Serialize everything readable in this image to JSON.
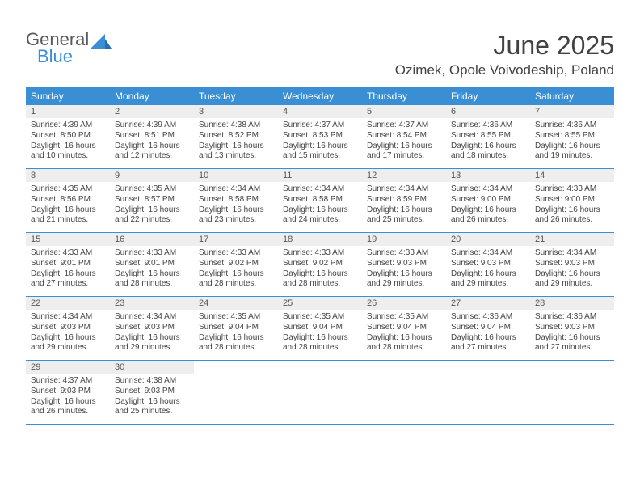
{
  "logo": {
    "text1": "General",
    "text2": "Blue"
  },
  "title": "June 2025",
  "location": "Ozimek, Opole Voivodeship, Poland",
  "colors": {
    "header_bg": "#3a8fd4",
    "daynum_bg": "#eeeeee",
    "text": "#333333",
    "border": "#3a8fd4"
  },
  "font": {
    "title_size": 32,
    "location_size": 17,
    "header_size": 12,
    "body_size": 10
  },
  "day_names": [
    "Sunday",
    "Monday",
    "Tuesday",
    "Wednesday",
    "Thursday",
    "Friday",
    "Saturday"
  ],
  "weeks": [
    [
      {
        "num": "1",
        "sunrise": "4:39 AM",
        "sunset": "8:50 PM",
        "dl1": "Daylight: 16 hours",
        "dl2": "and 10 minutes."
      },
      {
        "num": "2",
        "sunrise": "4:39 AM",
        "sunset": "8:51 PM",
        "dl1": "Daylight: 16 hours",
        "dl2": "and 12 minutes."
      },
      {
        "num": "3",
        "sunrise": "4:38 AM",
        "sunset": "8:52 PM",
        "dl1": "Daylight: 16 hours",
        "dl2": "and 13 minutes."
      },
      {
        "num": "4",
        "sunrise": "4:37 AM",
        "sunset": "8:53 PM",
        "dl1": "Daylight: 16 hours",
        "dl2": "and 15 minutes."
      },
      {
        "num": "5",
        "sunrise": "4:37 AM",
        "sunset": "8:54 PM",
        "dl1": "Daylight: 16 hours",
        "dl2": "and 17 minutes."
      },
      {
        "num": "6",
        "sunrise": "4:36 AM",
        "sunset": "8:55 PM",
        "dl1": "Daylight: 16 hours",
        "dl2": "and 18 minutes."
      },
      {
        "num": "7",
        "sunrise": "4:36 AM",
        "sunset": "8:55 PM",
        "dl1": "Daylight: 16 hours",
        "dl2": "and 19 minutes."
      }
    ],
    [
      {
        "num": "8",
        "sunrise": "4:35 AM",
        "sunset": "8:56 PM",
        "dl1": "Daylight: 16 hours",
        "dl2": "and 21 minutes."
      },
      {
        "num": "9",
        "sunrise": "4:35 AM",
        "sunset": "8:57 PM",
        "dl1": "Daylight: 16 hours",
        "dl2": "and 22 minutes."
      },
      {
        "num": "10",
        "sunrise": "4:34 AM",
        "sunset": "8:58 PM",
        "dl1": "Daylight: 16 hours",
        "dl2": "and 23 minutes."
      },
      {
        "num": "11",
        "sunrise": "4:34 AM",
        "sunset": "8:58 PM",
        "dl1": "Daylight: 16 hours",
        "dl2": "and 24 minutes."
      },
      {
        "num": "12",
        "sunrise": "4:34 AM",
        "sunset": "8:59 PM",
        "dl1": "Daylight: 16 hours",
        "dl2": "and 25 minutes."
      },
      {
        "num": "13",
        "sunrise": "4:34 AM",
        "sunset": "9:00 PM",
        "dl1": "Daylight: 16 hours",
        "dl2": "and 26 minutes."
      },
      {
        "num": "14",
        "sunrise": "4:33 AM",
        "sunset": "9:00 PM",
        "dl1": "Daylight: 16 hours",
        "dl2": "and 26 minutes."
      }
    ],
    [
      {
        "num": "15",
        "sunrise": "4:33 AM",
        "sunset": "9:01 PM",
        "dl1": "Daylight: 16 hours",
        "dl2": "and 27 minutes."
      },
      {
        "num": "16",
        "sunrise": "4:33 AM",
        "sunset": "9:01 PM",
        "dl1": "Daylight: 16 hours",
        "dl2": "and 28 minutes."
      },
      {
        "num": "17",
        "sunrise": "4:33 AM",
        "sunset": "9:02 PM",
        "dl1": "Daylight: 16 hours",
        "dl2": "and 28 minutes."
      },
      {
        "num": "18",
        "sunrise": "4:33 AM",
        "sunset": "9:02 PM",
        "dl1": "Daylight: 16 hours",
        "dl2": "and 28 minutes."
      },
      {
        "num": "19",
        "sunrise": "4:33 AM",
        "sunset": "9:03 PM",
        "dl1": "Daylight: 16 hours",
        "dl2": "and 29 minutes."
      },
      {
        "num": "20",
        "sunrise": "4:34 AM",
        "sunset": "9:03 PM",
        "dl1": "Daylight: 16 hours",
        "dl2": "and 29 minutes."
      },
      {
        "num": "21",
        "sunrise": "4:34 AM",
        "sunset": "9:03 PM",
        "dl1": "Daylight: 16 hours",
        "dl2": "and 29 minutes."
      }
    ],
    [
      {
        "num": "22",
        "sunrise": "4:34 AM",
        "sunset": "9:03 PM",
        "dl1": "Daylight: 16 hours",
        "dl2": "and 29 minutes."
      },
      {
        "num": "23",
        "sunrise": "4:34 AM",
        "sunset": "9:03 PM",
        "dl1": "Daylight: 16 hours",
        "dl2": "and 29 minutes."
      },
      {
        "num": "24",
        "sunrise": "4:35 AM",
        "sunset": "9:04 PM",
        "dl1": "Daylight: 16 hours",
        "dl2": "and 28 minutes."
      },
      {
        "num": "25",
        "sunrise": "4:35 AM",
        "sunset": "9:04 PM",
        "dl1": "Daylight: 16 hours",
        "dl2": "and 28 minutes."
      },
      {
        "num": "26",
        "sunrise": "4:35 AM",
        "sunset": "9:04 PM",
        "dl1": "Daylight: 16 hours",
        "dl2": "and 28 minutes."
      },
      {
        "num": "27",
        "sunrise": "4:36 AM",
        "sunset": "9:04 PM",
        "dl1": "Daylight: 16 hours",
        "dl2": "and 27 minutes."
      },
      {
        "num": "28",
        "sunrise": "4:36 AM",
        "sunset": "9:03 PM",
        "dl1": "Daylight: 16 hours",
        "dl2": "and 27 minutes."
      }
    ],
    [
      {
        "num": "29",
        "sunrise": "4:37 AM",
        "sunset": "9:03 PM",
        "dl1": "Daylight: 16 hours",
        "dl2": "and 26 minutes."
      },
      {
        "num": "30",
        "sunrise": "4:38 AM",
        "sunset": "9:03 PM",
        "dl1": "Daylight: 16 hours",
        "dl2": "and 25 minutes."
      },
      null,
      null,
      null,
      null,
      null
    ]
  ]
}
